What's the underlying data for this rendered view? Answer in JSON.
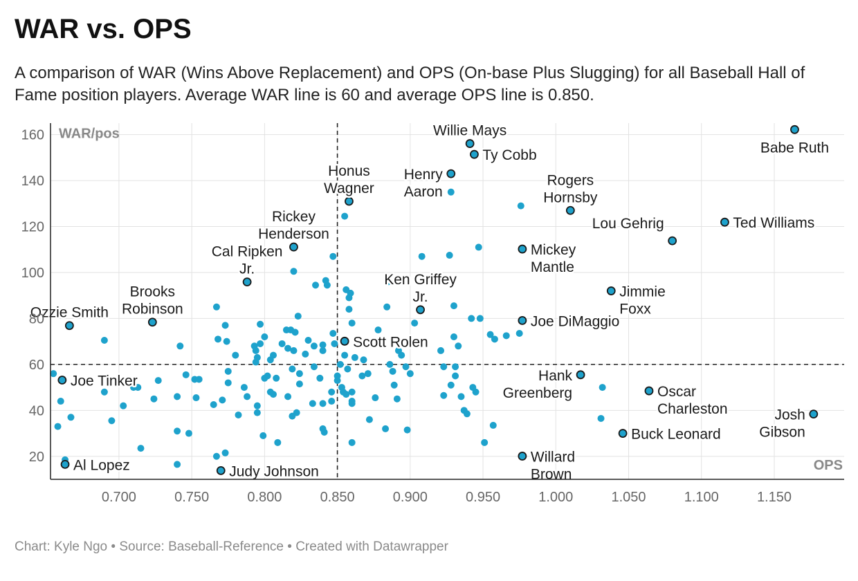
{
  "title": "WAR vs. OPS",
  "subtitle": "A comparison of WAR (Wins Above Replacement) and OPS (On-base Plus Slugging) for all Baseball Hall of Fame position players. Average WAR line is 60 and average OPS line is 0.850.",
  "footer": {
    "author": "Chart: Kyle Ngo",
    "source": "Source: Baseball-Reference",
    "tool": "Created with Datawrapper",
    "separator": "•"
  },
  "chart_data": {
    "type": "scatter",
    "xlabel": "OPS",
    "ylabel": "WAR/pos",
    "xlim": [
      0.653,
      1.198
    ],
    "ylim": [
      10,
      165
    ],
    "x_ticks": [
      "0.700",
      "0.750",
      "0.800",
      "0.850",
      "0.900",
      "0.950",
      "1.000",
      "1.050",
      "1.100",
      "1.150"
    ],
    "x_tick_values": [
      0.7,
      0.75,
      0.8,
      0.85,
      0.9,
      0.95,
      1.0,
      1.05,
      1.1,
      1.15
    ],
    "y_ticks": [
      "20",
      "40",
      "60",
      "80",
      "100",
      "120",
      "140",
      "160"
    ],
    "y_tick_values": [
      20,
      40,
      60,
      80,
      100,
      120,
      140,
      160
    ],
    "reference_lines": {
      "ops": 0.85,
      "war": 60
    },
    "grid": true,
    "colors": {
      "point": "#1ea2cc",
      "highlight": "#1ea2cc",
      "highlight_stroke": "#1a1a1a",
      "line": "#222222",
      "grid": "#e2e2e2"
    },
    "highlighted": [
      {
        "name": "Babe Ruth",
        "ops": 1.164,
        "war": 162.2,
        "label": [
          "Babe Ruth"
        ],
        "anchor": "below"
      },
      {
        "name": "Willie Mays",
        "ops": 0.941,
        "war": 156.1,
        "label": [
          "Willie Mays"
        ],
        "anchor": "above"
      },
      {
        "name": "Ty Cobb",
        "ops": 0.944,
        "war": 151.4,
        "label": [
          "Ty Cobb"
        ],
        "anchor": "right"
      },
      {
        "name": "Henry Aaron",
        "ops": 0.928,
        "war": 143.0,
        "label": [
          "Henry",
          "Aaron"
        ],
        "anchor": "left"
      },
      {
        "name": "Honus Wagner",
        "ops": 0.858,
        "war": 131.0,
        "label": [
          "Honus",
          "Wagner"
        ],
        "anchor": "above"
      },
      {
        "name": "Rogers Hornsby",
        "ops": 1.01,
        "war": 127.0,
        "label": [
          "Rogers",
          "Hornsby"
        ],
        "anchor": "above"
      },
      {
        "name": "Ted Williams",
        "ops": 1.116,
        "war": 121.9,
        "label": [
          "Ted Williams"
        ],
        "anchor": "right"
      },
      {
        "name": "Lou Gehrig",
        "ops": 1.08,
        "war": 113.8,
        "label": [
          "Lou Gehrig"
        ],
        "anchor": "above-left"
      },
      {
        "name": "Rickey Henderson",
        "ops": 0.82,
        "war": 111.1,
        "label": [
          "Rickey",
          "Henderson"
        ],
        "anchor": "above"
      },
      {
        "name": "Mickey Mantle",
        "ops": 0.977,
        "war": 110.2,
        "label": [
          "Mickey",
          "Mantle"
        ],
        "anchor": "right"
      },
      {
        "name": "Cal Ripken Jr.",
        "ops": 0.788,
        "war": 95.9,
        "label": [
          "Cal Ripken",
          "Jr."
        ],
        "anchor": "above"
      },
      {
        "name": "Jimmie Foxx",
        "ops": 1.038,
        "war": 92.0,
        "label": [
          "Jimmie",
          "Foxx"
        ],
        "anchor": "right"
      },
      {
        "name": "Ken Griffey Jr.",
        "ops": 0.907,
        "war": 83.8,
        "label": [
          "Ken Griffey",
          "Jr."
        ],
        "anchor": "above"
      },
      {
        "name": "Joe DiMaggio",
        "ops": 0.977,
        "war": 79.1,
        "label": [
          "Joe DiMaggio"
        ],
        "anchor": "right"
      },
      {
        "name": "Brooks Robinson",
        "ops": 0.723,
        "war": 78.4,
        "label": [
          "Brooks",
          "Robinson"
        ],
        "anchor": "above"
      },
      {
        "name": "Ozzie Smith",
        "ops": 0.666,
        "war": 76.9,
        "label": [
          "Ozzie Smith"
        ],
        "anchor": "above"
      },
      {
        "name": "Scott Rolen",
        "ops": 0.855,
        "war": 70.1,
        "label": [
          "Scott Rolen"
        ],
        "anchor": "right"
      },
      {
        "name": "Hank Greenberg",
        "ops": 1.017,
        "war": 55.5,
        "label": [
          "Hank",
          "Greenberg"
        ],
        "anchor": "left"
      },
      {
        "name": "Joe Tinker",
        "ops": 0.661,
        "war": 53.2,
        "label": [
          "Joe Tinker"
        ],
        "anchor": "right"
      },
      {
        "name": "Oscar Charleston",
        "ops": 1.064,
        "war": 48.5,
        "label": [
          "Oscar",
          "Charleston"
        ],
        "anchor": "right"
      },
      {
        "name": "Josh Gibson",
        "ops": 1.177,
        "war": 38.4,
        "label": [
          "Josh",
          "Gibson"
        ],
        "anchor": "left"
      },
      {
        "name": "Buck Leonard",
        "ops": 1.046,
        "war": 30.0,
        "label": [
          "Buck Leonard"
        ],
        "anchor": "right"
      },
      {
        "name": "Willard Brown",
        "ops": 0.977,
        "war": 20.1,
        "label": [
          "Willard",
          "Brown"
        ],
        "anchor": "right"
      },
      {
        "name": "Al Lopez",
        "ops": 0.663,
        "war": 16.5,
        "label": [
          "Al Lopez"
        ],
        "anchor": "right"
      },
      {
        "name": "Judy Johnson",
        "ops": 0.77,
        "war": 13.8,
        "label": [
          "Judy Johnson"
        ],
        "anchor": "right"
      }
    ],
    "points": [
      [
        0.655,
        56
      ],
      [
        0.658,
        33
      ],
      [
        0.66,
        44
      ],
      [
        0.663,
        18.5
      ],
      [
        0.667,
        37
      ],
      [
        0.69,
        70.5
      ],
      [
        0.69,
        48
      ],
      [
        0.695,
        35.5
      ],
      [
        0.703,
        42
      ],
      [
        0.71,
        50
      ],
      [
        0.713,
        50
      ],
      [
        0.715,
        23.5
      ],
      [
        0.724,
        45
      ],
      [
        0.727,
        53
      ],
      [
        0.74,
        31
      ],
      [
        0.74,
        16.5
      ],
      [
        0.74,
        46
      ],
      [
        0.742,
        68
      ],
      [
        0.746,
        55.5
      ],
      [
        0.748,
        30
      ],
      [
        0.752,
        53.5
      ],
      [
        0.753,
        45.5
      ],
      [
        0.755,
        53.5
      ],
      [
        0.765,
        42.5
      ],
      [
        0.767,
        20
      ],
      [
        0.767,
        85
      ],
      [
        0.768,
        71
      ],
      [
        0.771,
        44.5
      ],
      [
        0.773,
        21.5
      ],
      [
        0.773,
        77
      ],
      [
        0.774,
        70
      ],
      [
        0.775,
        57
      ],
      [
        0.775,
        52
      ],
      [
        0.78,
        64
      ],
      [
        0.782,
        38
      ],
      [
        0.786,
        50
      ],
      [
        0.788,
        46
      ],
      [
        0.793,
        68
      ],
      [
        0.794,
        66
      ],
      [
        0.794,
        61
      ],
      [
        0.795,
        63
      ],
      [
        0.795,
        42
      ],
      [
        0.795,
        39
      ],
      [
        0.797,
        77.5
      ],
      [
        0.797,
        69
      ],
      [
        0.799,
        29
      ],
      [
        0.8,
        72
      ],
      [
        0.8,
        54
      ],
      [
        0.802,
        55
      ],
      [
        0.804,
        62
      ],
      [
        0.804,
        48
      ],
      [
        0.806,
        64
      ],
      [
        0.806,
        47
      ],
      [
        0.808,
        54
      ],
      [
        0.809,
        26
      ],
      [
        0.812,
        69
      ],
      [
        0.815,
        75
      ],
      [
        0.816,
        67
      ],
      [
        0.816,
        46
      ],
      [
        0.818,
        75
      ],
      [
        0.819,
        58
      ],
      [
        0.819,
        37.5
      ],
      [
        0.82,
        66
      ],
      [
        0.82,
        100.5
      ],
      [
        0.821,
        74
      ],
      [
        0.822,
        39
      ],
      [
        0.823,
        81
      ],
      [
        0.824,
        51.5
      ],
      [
        0.824,
        56
      ],
      [
        0.828,
        64.5
      ],
      [
        0.83,
        70.5
      ],
      [
        0.833,
        43
      ],
      [
        0.834,
        59
      ],
      [
        0.834,
        68
      ],
      [
        0.835,
        94.5
      ],
      [
        0.838,
        54
      ],
      [
        0.84,
        43
      ],
      [
        0.84,
        66
      ],
      [
        0.84,
        68.5
      ],
      [
        0.84,
        32
      ],
      [
        0.841,
        30.5
      ],
      [
        0.842,
        96.5
      ],
      [
        0.843,
        94.5
      ],
      [
        0.846,
        48
      ],
      [
        0.846,
        44
      ],
      [
        0.847,
        73.5
      ],
      [
        0.847,
        107
      ],
      [
        0.848,
        69
      ],
      [
        0.85,
        55
      ],
      [
        0.85,
        53
      ],
      [
        0.852,
        60
      ],
      [
        0.853,
        50
      ],
      [
        0.854,
        48
      ],
      [
        0.855,
        124.5
      ],
      [
        0.855,
        64
      ],
      [
        0.856,
        92.5
      ],
      [
        0.856,
        47
      ],
      [
        0.857,
        58
      ],
      [
        0.858,
        89
      ],
      [
        0.858,
        84
      ],
      [
        0.859,
        91
      ],
      [
        0.86,
        78
      ],
      [
        0.86,
        48
      ],
      [
        0.86,
        44
      ],
      [
        0.86,
        43
      ],
      [
        0.86,
        26
      ],
      [
        0.862,
        63
      ],
      [
        0.867,
        55
      ],
      [
        0.868,
        62
      ],
      [
        0.871,
        56
      ],
      [
        0.872,
        36
      ],
      [
        0.876,
        45.5
      ],
      [
        0.878,
        75
      ],
      [
        0.883,
        32
      ],
      [
        0.884,
        85
      ],
      [
        0.885,
        96
      ],
      [
        0.886,
        60
      ],
      [
        0.888,
        57
      ],
      [
        0.889,
        51
      ],
      [
        0.891,
        45
      ],
      [
        0.892,
        66
      ],
      [
        0.894,
        64
      ],
      [
        0.897,
        59
      ],
      [
        0.898,
        31.5
      ],
      [
        0.9,
        56
      ],
      [
        0.903,
        78
      ],
      [
        0.908,
        107
      ],
      [
        0.921,
        66
      ],
      [
        0.923,
        46.5
      ],
      [
        0.923,
        59
      ],
      [
        0.927,
        107.5
      ],
      [
        0.928,
        135
      ],
      [
        0.928,
        51
      ],
      [
        0.93,
        85.5
      ],
      [
        0.93,
        72
      ],
      [
        0.931,
        55
      ],
      [
        0.931,
        59
      ],
      [
        0.933,
        68
      ],
      [
        0.935,
        46
      ],
      [
        0.937,
        40
      ],
      [
        0.939,
        38.5
      ],
      [
        0.942,
        80
      ],
      [
        0.943,
        50
      ],
      [
        0.945,
        48
      ],
      [
        0.947,
        111
      ],
      [
        0.948,
        80
      ],
      [
        0.951,
        26
      ],
      [
        0.955,
        73
      ],
      [
        0.957,
        33.5
      ],
      [
        0.958,
        71
      ],
      [
        0.966,
        72.5
      ],
      [
        0.975,
        73.5
      ],
      [
        0.976,
        129
      ],
      [
        1.031,
        36.5
      ],
      [
        1.032,
        50
      ]
    ]
  }
}
